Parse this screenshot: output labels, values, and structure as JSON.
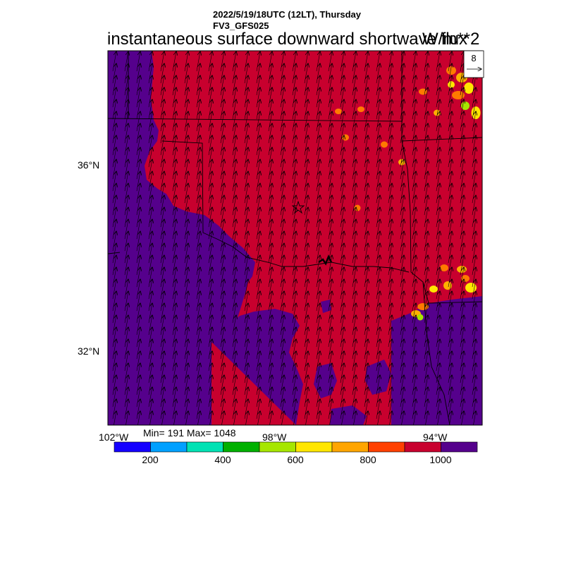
{
  "header": {
    "date_line": "2022/5/19/18UTC (12LT), Thursday",
    "model_line": "FV3_GFS025",
    "title": "instantaneous surface downward shortwave flux",
    "units": "W/m**2"
  },
  "map": {
    "lat_labels": [
      "36°N",
      "32°N"
    ],
    "lon_labels": [
      "102°W",
      "98°W",
      "94°W"
    ],
    "vector_ref_value": "8",
    "stats_text": "Min= 191 Max= 1048",
    "field_colors": {
      "dominant_region": "#c8002e",
      "west_and_south_regions": "#55008c",
      "scattered_patches": [
        "#ff7a00",
        "#ffb000",
        "#ffe600",
        "#a6e600"
      ]
    },
    "wind_direction": "south-southwesterly",
    "marker": "star"
  },
  "colorbar": {
    "colors": [
      "#1400ff",
      "#00a0ff",
      "#00e2b4",
      "#00b000",
      "#a6e600",
      "#ffe600",
      "#ffa500",
      "#ff4000",
      "#c8002e",
      "#55008c"
    ],
    "tick_labels": [
      "200",
      "400",
      "600",
      "800",
      "1000"
    ]
  }
}
